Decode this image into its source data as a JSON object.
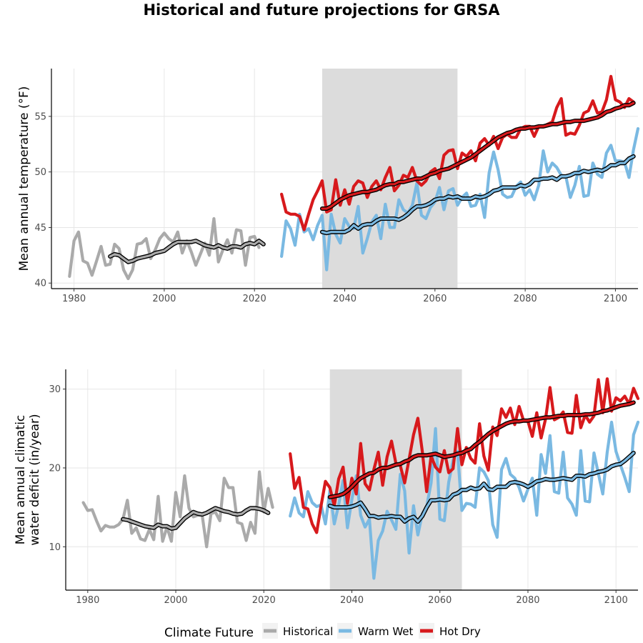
{
  "title": "Historical and future projections for GRSA",
  "colors": {
    "historical": "#aaaaaa",
    "warm_wet": "#7ab9e2",
    "hot_dry": "#d7191c",
    "shade": "#dcdcdc",
    "grid": "#e6e6e6",
    "smooth_outline": "#000000"
  },
  "legend": {
    "title": "Climate Future",
    "items": [
      "Historical",
      "Warm Wet",
      "Hot Dry"
    ]
  },
  "chart_data": [
    {
      "type": "line",
      "ylabel": [
        "Mean annual temperature (°F)"
      ],
      "xlim": [
        1975,
        2105
      ],
      "ylim": [
        39.5,
        59.3
      ],
      "xticks": [
        1980,
        2000,
        2020,
        2040,
        2060,
        2080,
        2100
      ],
      "yticks": [
        40,
        45,
        50,
        55
      ],
      "shaded_period": [
        2035,
        2065
      ],
      "series": [
        {
          "key": "historical",
          "x_start": 1979,
          "values": [
            40.6,
            43.8,
            44.6,
            42.0,
            41.8,
            40.7,
            42.0,
            43.3,
            41.6,
            41.7,
            43.5,
            43.1,
            41.2,
            40.4,
            41.2,
            43.5,
            43.6,
            44.0,
            42.2,
            43.0,
            44.0,
            44.5,
            44.0,
            43.7,
            44.6,
            42.7,
            43.8,
            42.8,
            41.6,
            42.6,
            43.6,
            42.5,
            45.8,
            41.9,
            43.0,
            43.9,
            42.7,
            44.8,
            44.7,
            41.6,
            44.1,
            44.2,
            43.2
          ]
        },
        {
          "key": "historical_smooth",
          "x_start": 1988,
          "values": [
            42.4,
            42.6,
            42.5,
            42.2,
            41.9,
            42.0,
            42.2,
            42.3,
            42.4,
            42.5,
            42.7,
            42.8,
            42.9,
            43.2,
            43.5,
            43.7,
            43.7,
            43.7,
            43.7,
            43.8,
            43.6,
            43.4,
            43.3,
            43.2,
            43.4,
            43.2,
            43.1,
            43.3,
            43.3,
            43.2,
            43.5,
            43.6,
            43.5,
            43.8,
            43.5
          ]
        },
        {
          "key": "warm_wet",
          "x_start": 2026,
          "values": [
            42.4,
            45.6,
            44.9,
            43.4,
            46.2,
            44.6,
            44.9,
            43.9,
            45.2,
            46.1,
            41.2,
            46.2,
            44.4,
            43.6,
            45.8,
            45.1,
            44.9,
            46.9,
            42.7,
            44.0,
            45.5,
            46.1,
            44.0,
            47.1,
            45.0,
            45.0,
            47.5,
            46.6,
            46.3,
            47.0,
            49.0,
            46.1,
            45.8,
            46.8,
            47.3,
            48.6,
            46.6,
            48.3,
            48.5,
            47.0,
            47.7,
            48.1,
            46.9,
            47.0,
            48.0,
            45.9,
            49.9,
            51.8,
            50.2,
            48.0,
            47.7,
            47.8,
            48.7,
            49.1,
            47.9,
            48.4,
            47.5,
            48.8,
            51.9,
            50.0,
            50.8,
            50.4,
            49.7,
            49.6,
            47.7,
            48.8,
            50.5,
            47.8,
            47.9,
            50.8,
            49.8,
            49.5,
            51.7,
            52.4,
            51.0,
            51.0,
            50.9,
            49.5,
            52.0,
            53.9
          ]
        },
        {
          "key": "hot_dry",
          "x_start": 2026,
          "values": [
            48.0,
            46.4,
            46.2,
            46.2,
            46.0,
            44.8,
            46.2,
            47.5,
            48.3,
            49.2,
            46.4,
            46.6,
            49.3,
            47.0,
            48.4,
            47.1,
            48.7,
            49.2,
            49.0,
            47.7,
            48.7,
            49.2,
            48.4,
            49.5,
            50.4,
            48.3,
            48.8,
            49.7,
            49.5,
            50.4,
            49.2,
            48.8,
            49.2,
            50.0,
            50.3,
            49.4,
            51.5,
            51.9,
            52.0,
            50.3,
            51.7,
            51.4,
            51.9,
            51.0,
            52.6,
            53.0,
            52.4,
            53.2,
            52.1,
            53.1,
            53.4,
            53.1,
            53.1,
            53.9,
            54.1,
            54.1,
            53.2,
            54.1,
            54.1,
            54.3,
            54.5,
            55.8,
            56.6,
            53.3,
            53.5,
            53.4,
            54.2,
            55.3,
            55.5,
            56.4,
            55.3,
            55.4,
            56.5,
            58.6,
            56.5,
            56.3,
            55.8,
            56.6,
            56.3
          ]
        },
        {
          "key": "warm_wet_smooth",
          "x_start": 2035,
          "values": [
            44.6,
            44.5,
            44.6,
            44.6,
            44.6,
            44.6,
            44.8,
            45.2,
            44.9,
            45.2,
            45.3,
            45.3,
            45.6,
            45.8,
            45.8,
            45.8,
            45.8,
            45.7,
            45.9,
            46.2,
            46.6,
            46.9,
            46.9,
            47.0,
            47.2,
            47.5,
            47.6,
            47.6,
            47.8,
            47.7,
            47.8,
            47.6,
            47.6,
            47.6,
            47.8,
            47.7,
            47.8,
            48.0,
            48.3,
            48.4,
            48.6,
            48.6,
            48.6,
            48.6,
            48.8,
            48.7,
            48.9,
            49.3,
            49.3,
            49.4,
            49.4,
            49.5,
            49.3,
            49.6,
            49.6,
            49.7,
            49.9,
            49.9,
            50.1,
            50.0,
            50.1,
            50.2,
            50.1,
            50.3,
            50.6,
            50.6,
            50.8,
            50.8,
            51.2,
            51.4
          ]
        },
        {
          "key": "hot_dry_smooth",
          "x_start": 2035,
          "values": [
            46.7,
            46.7,
            46.9,
            47.2,
            47.5,
            47.7,
            47.9,
            48.0,
            48.1,
            48.2,
            48.2,
            48.3,
            48.4,
            48.6,
            48.8,
            48.9,
            48.9,
            49.1,
            49.1,
            49.2,
            49.3,
            49.4,
            49.4,
            49.6,
            49.8,
            49.9,
            50.1,
            50.2,
            50.3,
            50.5,
            50.7,
            50.9,
            51.1,
            51.3,
            51.6,
            51.9,
            52.2,
            52.5,
            52.8,
            53.1,
            53.3,
            53.5,
            53.6,
            53.8,
            53.9,
            53.9,
            54.0,
            54.0,
            54.1,
            54.1,
            54.2,
            54.3,
            54.3,
            54.4,
            54.5,
            54.5,
            54.6,
            54.6,
            54.6,
            54.7,
            54.8,
            54.9,
            55.1,
            55.4,
            55.5,
            55.7,
            55.8,
            56.0,
            56.0,
            56.2
          ]
        }
      ]
    },
    {
      "type": "line",
      "ylabel": [
        "Mean annual climatic",
        "water deficit (in/year)"
      ],
      "xlim": [
        1975,
        2105
      ],
      "ylim": [
        4.5,
        32.5
      ],
      "xticks": [
        1980,
        2000,
        2020,
        2040,
        2060,
        2080,
        2100
      ],
      "yticks": [
        10,
        20,
        30
      ],
      "shaded_period": [
        2035,
        2065
      ],
      "series": [
        {
          "key": "historical",
          "x_start": 1979,
          "values": [
            15.6,
            14.6,
            14.7,
            13.3,
            12.0,
            12.7,
            12.5,
            12.5,
            12.8,
            13.5,
            15.9,
            11.7,
            12.4,
            11.0,
            10.8,
            12.2,
            10.9,
            16.4,
            10.7,
            12.5,
            10.7,
            16.9,
            13.8,
            19.0,
            14.9,
            13.8,
            14.0,
            14.0,
            10.0,
            14.2,
            14.4,
            13.3,
            18.7,
            17.5,
            17.5,
            13.1,
            12.9,
            10.8,
            13.1,
            11.7,
            19.5,
            14.4,
            17.4,
            15.0
          ]
        },
        {
          "key": "historical_smooth",
          "x_start": 1988,
          "values": [
            13.5,
            13.4,
            13.2,
            13.0,
            12.8,
            12.6,
            12.5,
            12.4,
            12.8,
            12.6,
            12.6,
            12.3,
            12.4,
            13.0,
            13.6,
            14.0,
            14.4,
            14.2,
            14.1,
            14.3,
            14.6,
            14.9,
            14.7,
            14.5,
            14.4,
            14.2,
            14.1,
            14.2,
            14.6,
            14.9,
            14.9,
            14.8,
            14.6,
            14.3
          ]
        },
        {
          "key": "warm_wet",
          "x_start": 2026,
          "values": [
            13.9,
            16.2,
            14.3,
            13.8,
            17.0,
            15.6,
            15.1,
            15.3,
            12.9,
            17.1,
            12.9,
            15.3,
            18.4,
            12.4,
            16.0,
            19.0,
            14.0,
            12.5,
            13.5,
            6.0,
            10.8,
            12.0,
            14.5,
            13.4,
            12.2,
            19.2,
            17.1,
            9.2,
            15.2,
            11.5,
            14.2,
            15.1,
            18.1,
            25.0,
            13.5,
            13.3,
            18.2,
            21.0,
            22.1,
            14.6,
            15.5,
            15.4,
            15.0,
            20.0,
            19.5,
            18.4,
            12.8,
            11.2,
            19.8,
            21.2,
            19.2,
            18.7,
            17.5,
            15.8,
            17.3,
            18.7,
            14.0,
            21.7,
            19.3,
            24.1,
            17.0,
            16.8,
            22.0,
            16.2,
            15.4,
            14.0,
            22.2,
            15.8,
            15.7,
            21.9,
            19.3,
            16.7,
            22.0,
            25.8,
            22.1,
            20.4,
            18.8,
            17.0,
            24.2,
            25.8
          ]
        },
        {
          "key": "hot_dry",
          "x_start": 2026,
          "values": [
            21.8,
            17.4,
            18.8,
            15.0,
            14.8,
            12.9,
            11.8,
            15.2,
            18.3,
            17.5,
            15.2,
            18.6,
            20.1,
            15.5,
            18.7,
            16.7,
            23.1,
            18.0,
            17.2,
            19.8,
            22.0,
            17.8,
            21.4,
            23.4,
            20.6,
            20.3,
            18.1,
            21.1,
            24.2,
            26.3,
            22.1,
            17.0,
            21.5,
            20.1,
            19.5,
            22.2,
            19.4,
            19.9,
            25.0,
            20.4,
            22.6,
            21.2,
            20.6,
            25.6,
            21.5,
            19.7,
            25.2,
            24.1,
            27.5,
            26.4,
            27.6,
            25.5,
            27.8,
            26.0,
            25.9,
            24.0,
            27.0,
            23.8,
            26.2,
            30.2,
            26.1,
            26.4,
            27.1,
            24.5,
            24.4,
            29.2,
            25.1,
            26.7,
            25.8,
            26.6,
            31.2,
            27.0,
            31.3,
            27.2,
            28.9,
            28.5,
            29.1,
            28.1,
            30.1,
            28.8
          ]
        },
        {
          "key": "warm_wet_smooth",
          "x_start": 2035,
          "values": [
            15.2,
            15.0,
            15.0,
            15.0,
            15.0,
            15.1,
            15.3,
            15.6,
            14.8,
            13.9,
            13.9,
            13.7,
            13.8,
            13.8,
            13.9,
            13.8,
            13.8,
            13.2,
            13.6,
            13.8,
            13.2,
            13.9,
            15.0,
            15.9,
            15.9,
            16.0,
            15.9,
            16.0,
            16.6,
            16.8,
            17.2,
            17.2,
            17.5,
            17.3,
            17.4,
            18.0,
            17.3,
            17.2,
            17.6,
            17.6,
            17.6,
            18.1,
            18.2,
            18.1,
            17.9,
            17.6,
            17.9,
            18.3,
            18.4,
            18.6,
            18.5,
            18.5,
            18.6,
            18.7,
            18.6,
            18.5,
            19.0,
            19.0,
            18.9,
            19.2,
            19.3,
            19.5,
            19.6,
            19.8,
            20.2,
            20.4,
            20.5,
            20.9,
            21.4,
            21.9
          ]
        },
        {
          "key": "hot_dry_smooth",
          "x_start": 2035,
          "values": [
            16.3,
            16.4,
            16.5,
            16.7,
            17.1,
            17.6,
            18.2,
            18.7,
            19.0,
            19.3,
            19.4,
            19.8,
            20.0,
            20.0,
            20.2,
            20.4,
            20.5,
            20.8,
            21.0,
            21.4,
            21.6,
            21.6,
            21.6,
            21.7,
            21.8,
            21.6,
            21.4,
            21.5,
            21.6,
            21.8,
            21.9,
            22.2,
            22.4,
            22.9,
            23.3,
            23.8,
            24.3,
            24.7,
            25.0,
            25.3,
            25.6,
            25.8,
            25.9,
            25.9,
            26.0,
            26.0,
            26.1,
            26.2,
            26.3,
            26.4,
            26.4,
            26.5,
            26.6,
            26.6,
            26.7,
            26.7,
            26.7,
            26.7,
            26.8,
            26.8,
            26.9,
            27.0,
            27.2,
            27.3,
            27.5,
            27.7,
            27.9,
            28.0,
            28.1,
            28.3
          ]
        }
      ]
    }
  ]
}
